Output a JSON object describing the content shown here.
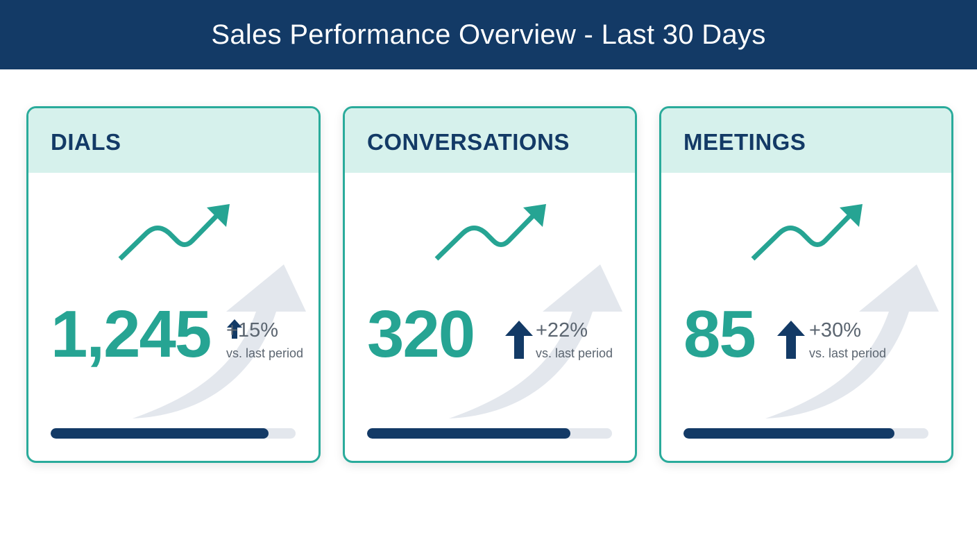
{
  "page_title": "Sales Performance Overview - Last 30 Days",
  "colors": {
    "header_bg": "#133a66",
    "accent_teal": "#2aab9b",
    "card_header_bg": "#d6f1ec",
    "navy": "#133a66",
    "bg_arrow": "#e3e7ed"
  },
  "cards": [
    {
      "title": "DIALS",
      "value": "1,245",
      "change": "+15%",
      "change_label": "vs. last period",
      "progress": 0.89,
      "trend_icon": "trending-up-icon",
      "change_icon": "arrow-up-icon"
    },
    {
      "title": "CONVERSATIONS",
      "value": "320",
      "change": "+22%",
      "change_label": "vs. last period",
      "progress": 0.83,
      "trend_icon": "trending-up-icon",
      "change_icon": "arrow-up-icon"
    },
    {
      "title": "MEETINGS",
      "value": "85",
      "change": "+30%",
      "change_label": "vs. last period",
      "progress": 0.86,
      "trend_icon": "trending-up-icon",
      "change_icon": "arrow-up-icon"
    }
  ]
}
